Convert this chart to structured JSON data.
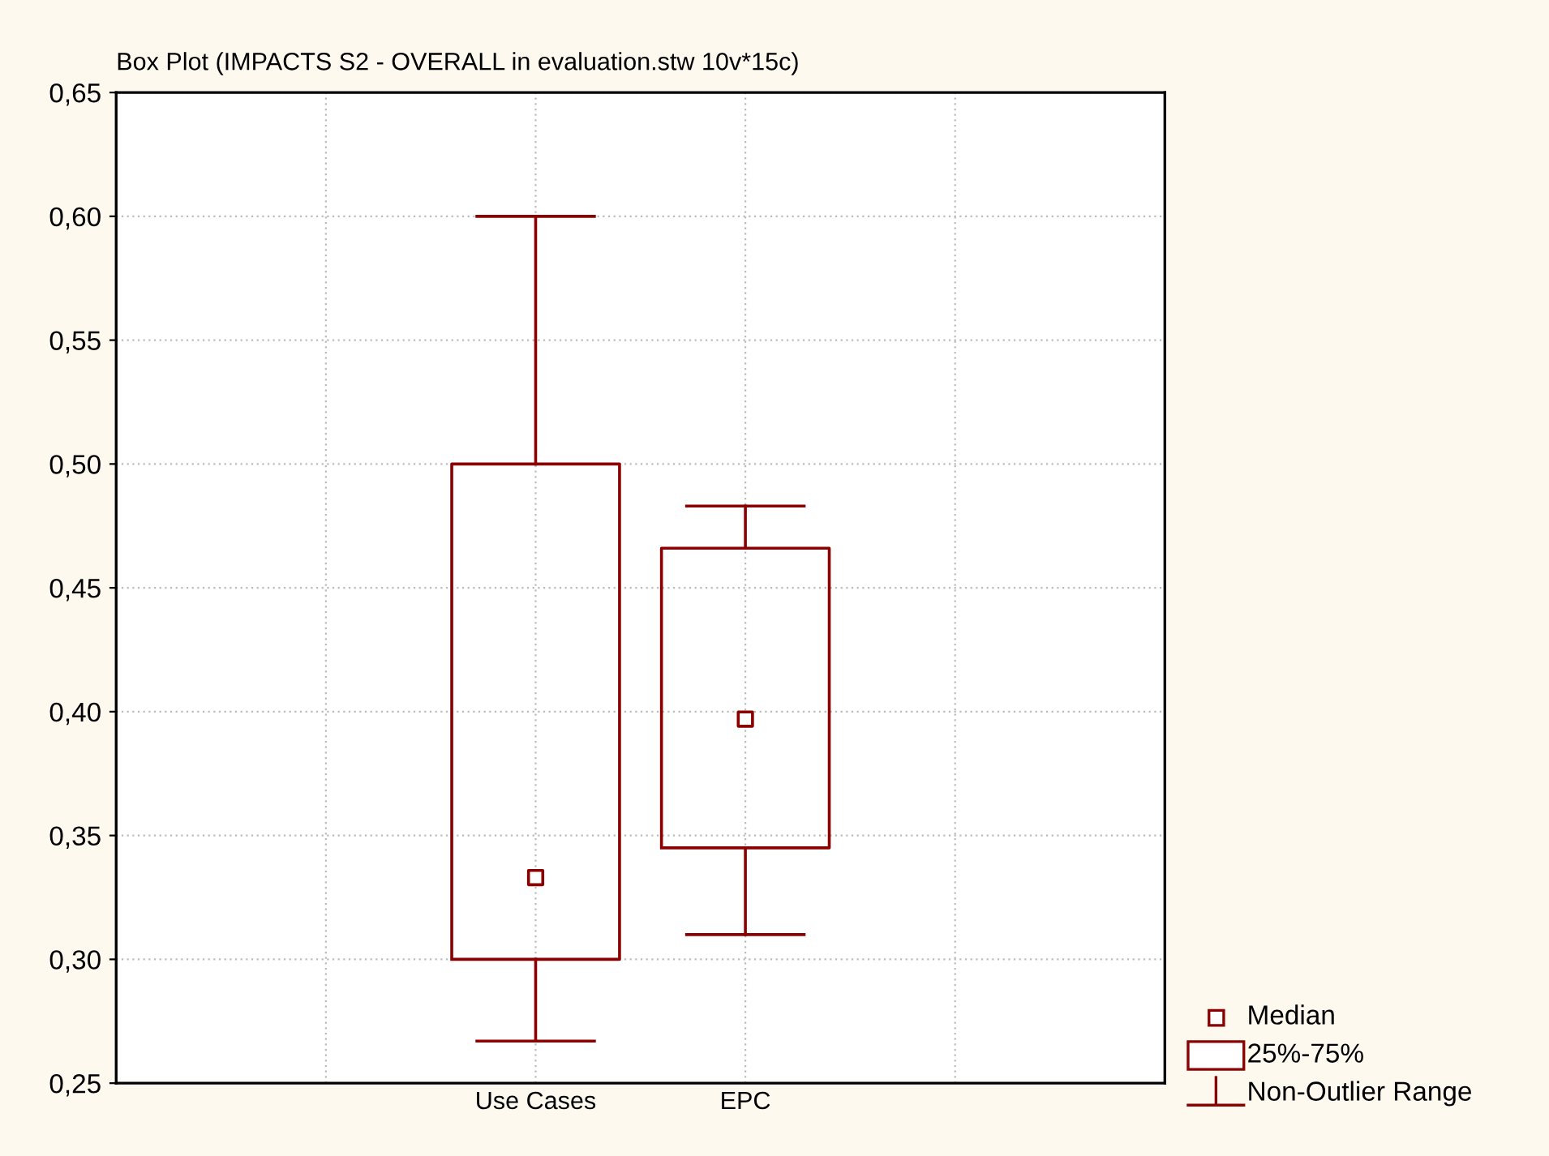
{
  "chart_data": {
    "type": "box",
    "title": "Box Plot (IMPACTS S2 - OVERALL in evaluation.stw 10v*15c)",
    "categories": [
      "Use Cases",
      "EPC"
    ],
    "series": [
      {
        "color": "#8b0000",
        "boxes": [
          {
            "low": 0.267,
            "q1": 0.3,
            "median": 0.333,
            "q3": 0.5,
            "high": 0.6
          },
          {
            "low": 0.31,
            "q1": 0.345,
            "median": 0.397,
            "q3": 0.466,
            "high": 0.483
          }
        ]
      }
    ],
    "ylim": [
      0.25,
      0.65
    ],
    "yticks": [
      {
        "value": 0.25,
        "label": "0,25"
      },
      {
        "value": 0.3,
        "label": "0,30"
      },
      {
        "value": 0.35,
        "label": "0,35"
      },
      {
        "value": 0.4,
        "label": "0,40"
      },
      {
        "value": 0.45,
        "label": "0,45"
      },
      {
        "value": 0.5,
        "label": "0,50"
      },
      {
        "value": 0.55,
        "label": "0,55"
      },
      {
        "value": 0.6,
        "label": "0,60"
      },
      {
        "value": 0.65,
        "label": "0,65"
      }
    ],
    "annotations": [
      "Median",
      "25%-75%",
      "Non-Outlier Range"
    ],
    "grid": true
  }
}
